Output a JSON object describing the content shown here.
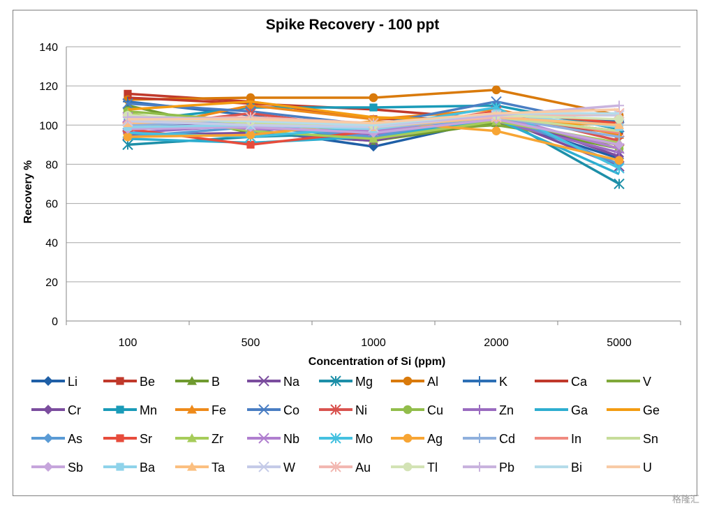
{
  "chart_data": {
    "type": "line",
    "title": "Spike Recovery - 100 ppt",
    "xlabel": "Concentration of Si (ppm)",
    "ylabel": "Recovery %",
    "categories": [
      "100",
      "500",
      "1000",
      "2000",
      "5000"
    ],
    "ylim": [
      0,
      140
    ],
    "yticks": [
      0,
      20,
      40,
      60,
      80,
      100,
      120,
      140
    ],
    "grid": true,
    "legend_position": "bottom",
    "series": [
      {
        "name": "Li",
        "color": "#1f5fa6",
        "marker": "diamond",
        "values": [
          101,
          98,
          89,
          103,
          83
        ]
      },
      {
        "name": "Be",
        "color": "#c0392b",
        "marker": "square",
        "values": [
          116,
          112,
          103,
          104,
          97
        ]
      },
      {
        "name": "B",
        "color": "#6f9a2f",
        "marker": "triangle",
        "values": [
          110,
          96,
          92,
          101,
          88
        ]
      },
      {
        "name": "Na",
        "color": "#7b4d9e",
        "marker": "x",
        "values": [
          95,
          96,
          92,
          104,
          79
        ]
      },
      {
        "name": "Mg",
        "color": "#1d8fa8",
        "marker": "star",
        "values": [
          90,
          94,
          96,
          105,
          70
        ]
      },
      {
        "name": "Al",
        "color": "#d97a0b",
        "marker": "circle",
        "values": [
          113,
          114,
          114,
          118,
          105
        ]
      },
      {
        "name": "K",
        "color": "#2c6fb5",
        "marker": "plus",
        "values": [
          112,
          105,
          95,
          106,
          102
        ]
      },
      {
        "name": "Ca",
        "color": "#c0392b",
        "marker": "line",
        "values": [
          114,
          111,
          108,
          103,
          96
        ]
      },
      {
        "name": "V",
        "color": "#7fa83a",
        "marker": "line",
        "values": [
          104,
          103,
          96,
          100,
          90
        ]
      },
      {
        "name": "Cr",
        "color": "#7b4d9e",
        "marker": "diamond",
        "values": [
          100,
          101,
          93,
          106,
          84
        ]
      },
      {
        "name": "Mn",
        "color": "#1a9bb8",
        "marker": "square",
        "values": [
          102,
          109,
          109,
          110,
          98
        ]
      },
      {
        "name": "Fe",
        "color": "#ee8a1a",
        "marker": "triangle",
        "values": [
          97,
          110,
          103,
          108,
          95
        ]
      },
      {
        "name": "Co",
        "color": "#4a7ec3",
        "marker": "x",
        "values": [
          111,
          107,
          100,
          112,
          99
        ]
      },
      {
        "name": "Ni",
        "color": "#d9534f",
        "marker": "star",
        "values": [
          99,
          106,
          98,
          107,
          92
        ]
      },
      {
        "name": "Cu",
        "color": "#92bd4b",
        "marker": "circle",
        "values": [
          107,
          102,
          96,
          104,
          88
        ]
      },
      {
        "name": "Zn",
        "color": "#9a6bc0",
        "marker": "plus",
        "values": [
          96,
          100,
          95,
          102,
          86
        ]
      },
      {
        "name": "Ga",
        "color": "#2eaed0",
        "marker": "line",
        "values": [
          93,
          91,
          94,
          103,
          75
        ]
      },
      {
        "name": "Ge",
        "color": "#f39c12",
        "marker": "line",
        "values": [
          108,
          112,
          104,
          102,
          100
        ]
      },
      {
        "name": "As",
        "color": "#5a9bd5",
        "marker": "diamond",
        "values": [
          94,
          99,
          94,
          106,
          80
        ]
      },
      {
        "name": "Sr",
        "color": "#e74c3c",
        "marker": "square",
        "values": [
          98,
          90,
          97,
          107,
          101
        ]
      },
      {
        "name": "Zr",
        "color": "#a6cc5a",
        "marker": "triangle",
        "values": [
          106,
          97,
          93,
          102,
          91
        ]
      },
      {
        "name": "Nb",
        "color": "#b07fcf",
        "marker": "x",
        "values": [
          104,
          98,
          97,
          105,
          88
        ]
      },
      {
        "name": "Mo",
        "color": "#45c1e0",
        "marker": "star",
        "values": [
          96,
          94,
          99,
          109,
          78
        ]
      },
      {
        "name": "Ag",
        "color": "#f7a534",
        "marker": "circle",
        "values": [
          94,
          95,
          102,
          97,
          82
        ]
      },
      {
        "name": "Cd",
        "color": "#8fb0dd",
        "marker": "plus",
        "values": [
          100,
          102,
          98,
          104,
          94
        ]
      },
      {
        "name": "In",
        "color": "#f08a80",
        "marker": "line",
        "values": [
          103,
          104,
          100,
          105,
          96
        ]
      },
      {
        "name": "Sn",
        "color": "#c7dd9a",
        "marker": "line",
        "values": [
          105,
          101,
          99,
          104,
          97
        ]
      },
      {
        "name": "Sb",
        "color": "#c6a5dc",
        "marker": "diamond",
        "values": [
          98,
          99,
          96,
          103,
          90
        ]
      },
      {
        "name": "Ba",
        "color": "#8fd3ea",
        "marker": "square",
        "values": [
          99,
          100,
          98,
          106,
          99
        ]
      },
      {
        "name": "Ta",
        "color": "#fbbf80",
        "marker": "triangle",
        "values": [
          101,
          103,
          99,
          104,
          100
        ]
      },
      {
        "name": "W",
        "color": "#c5cbe8",
        "marker": "x",
        "values": [
          102,
          100,
          99,
          105,
          105
        ]
      },
      {
        "name": "Au",
        "color": "#f2b8b2",
        "marker": "star",
        "values": [
          103,
          104,
          101,
          104,
          106
        ]
      },
      {
        "name": "Tl",
        "color": "#d3e3b5",
        "marker": "circle",
        "values": [
          105,
          102,
          100,
          105,
          103
        ]
      },
      {
        "name": "Pb",
        "color": "#c9b3de",
        "marker": "plus",
        "values": [
          104,
          103,
          100,
          105,
          110
        ]
      },
      {
        "name": "Bi",
        "color": "#b5dcea",
        "marker": "line",
        "values": [
          103,
          102,
          100,
          106,
          106
        ]
      },
      {
        "name": "U",
        "color": "#f8cba6",
        "marker": "line",
        "values": [
          103,
          103,
          101,
          106,
          108
        ]
      }
    ]
  },
  "watermark": "格隆汇"
}
